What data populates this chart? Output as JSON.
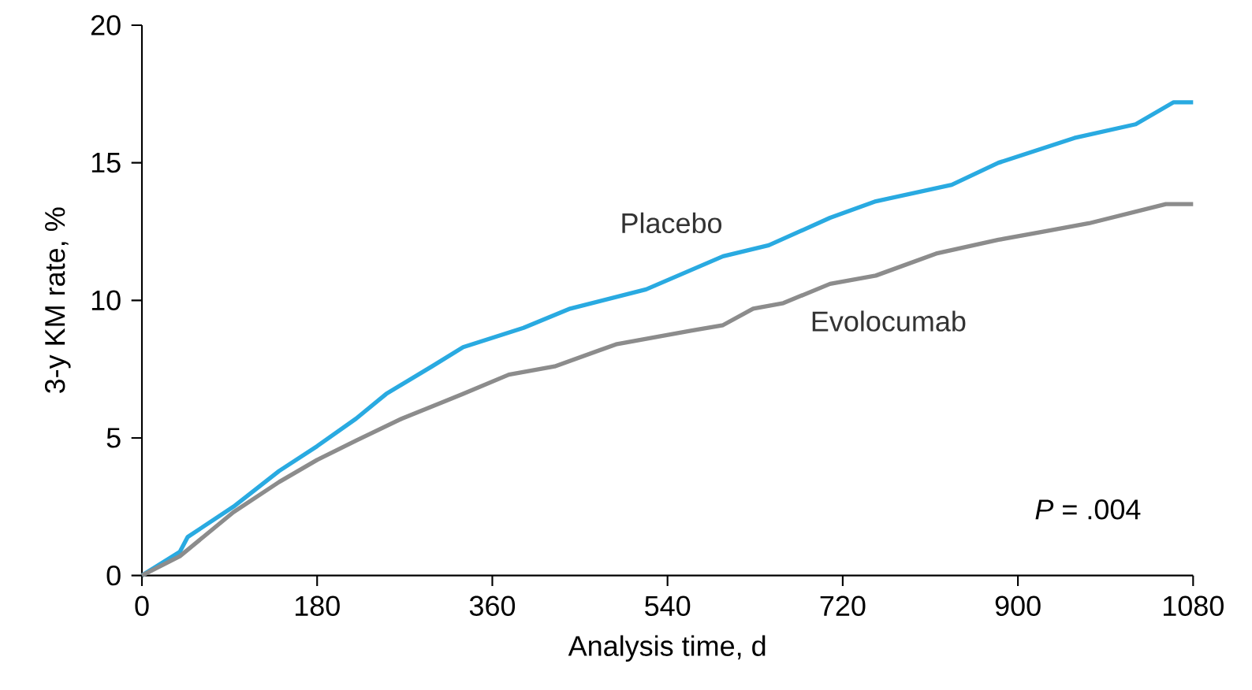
{
  "chart_data": {
    "type": "line",
    "xlabel": "Analysis time, d",
    "ylabel": "3-y KM rate, %",
    "x": [
      0,
      39,
      47,
      94,
      141,
      180,
      220,
      251,
      298,
      330,
      392,
      440,
      518,
      597,
      644,
      707,
      754,
      832,
      880,
      958,
      1021,
      1060,
      1080
    ],
    "series": [
      {
        "name": "Placebo",
        "color": "#29aae1",
        "values": [
          0,
          0.86,
          1.4,
          2.5,
          3.8,
          4.7,
          5.7,
          6.6,
          7.6,
          8.3,
          9.0,
          9.7,
          10.4,
          11.6,
          12.0,
          13.0,
          13.6,
          14.2,
          15.0,
          15.9,
          16.4,
          17.2,
          17.2
        ]
      },
      {
        "name": "Evolocumab",
        "color": "#8c8c8c",
        "x": [
          0,
          39,
          94,
          141,
          180,
          220,
          267,
          330,
          377,
          424,
          487,
          565,
          597,
          628,
          659,
          707,
          754,
          816,
          880,
          927,
          973,
          1052,
          1080
        ],
        "values": [
          0,
          0.7,
          2.3,
          3.4,
          4.2,
          4.9,
          5.7,
          6.6,
          7.3,
          7.6,
          8.4,
          8.9,
          9.1,
          9.7,
          9.9,
          10.6,
          10.9,
          11.7,
          12.2,
          12.5,
          12.8,
          13.5,
          13.5
        ]
      }
    ],
    "xlim": [
      0,
      1080
    ],
    "ylim": [
      0,
      20
    ],
    "xticks": [
      0,
      180,
      360,
      540,
      720,
      900,
      1080
    ],
    "yticks": [
      0,
      5,
      10,
      15,
      20
    ],
    "grid": false,
    "legend": false,
    "line_style": "solid",
    "marker": "none",
    "annotations": [
      "*P* = .004"
    ]
  }
}
